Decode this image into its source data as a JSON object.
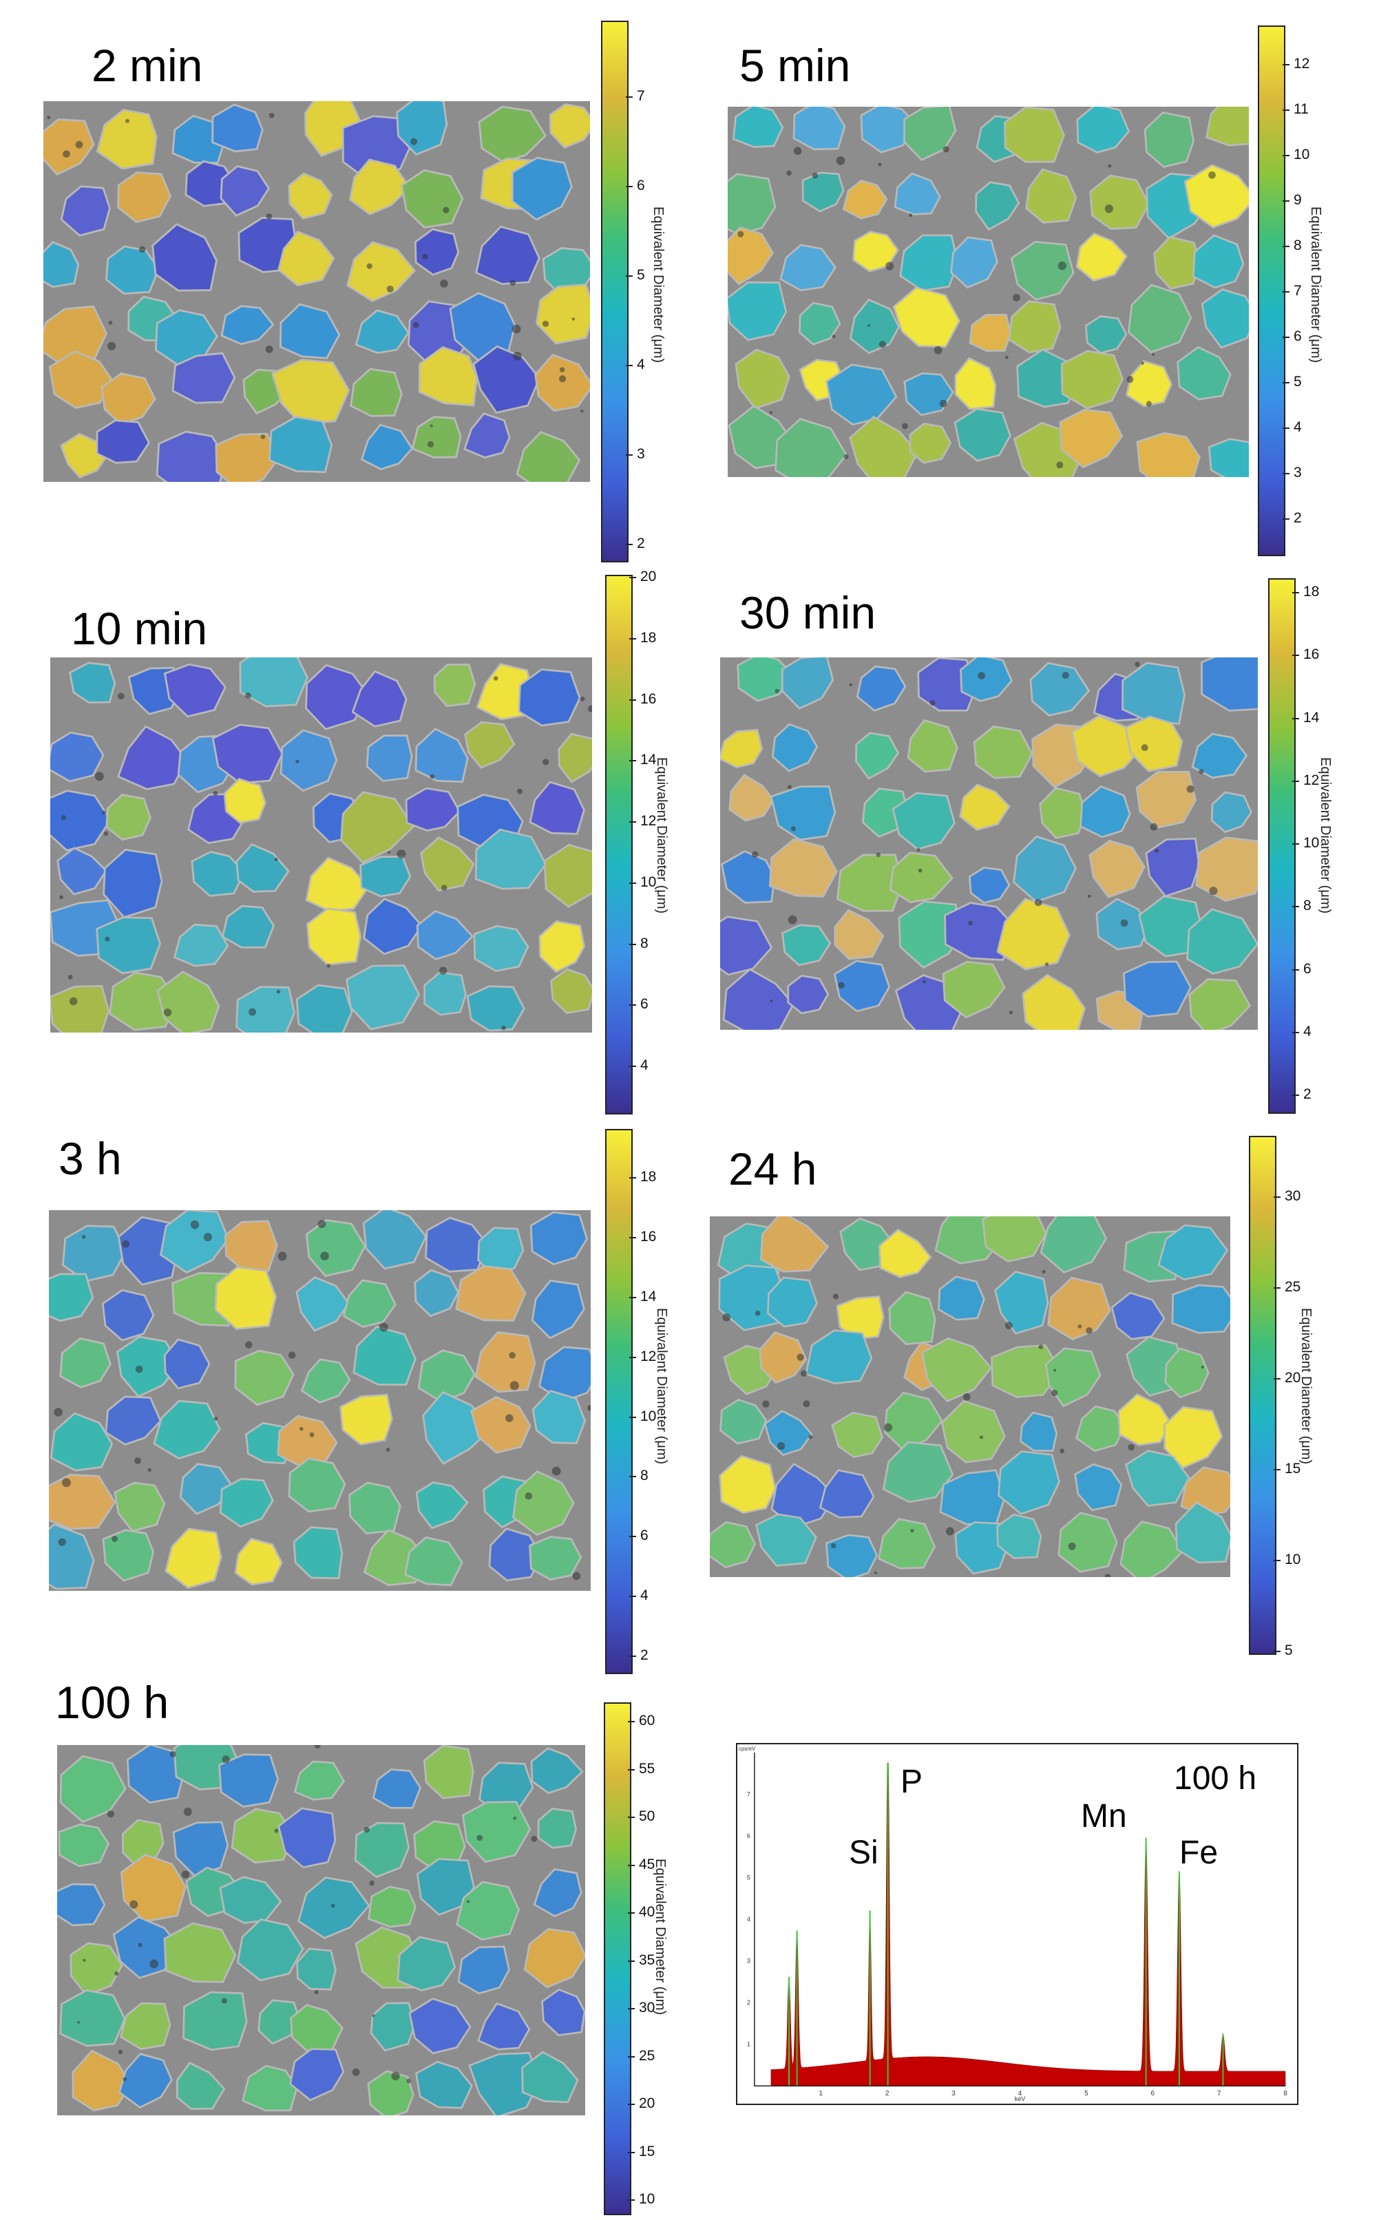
{
  "panels": [
    {
      "label": "2 min",
      "cb_title": "Equivalent Diameter (μm)",
      "ticks": [
        "7",
        "6",
        "5",
        "4",
        "3",
        "2"
      ]
    },
    {
      "label": "5 min",
      "cb_title": "Equivalent Diameter (μm)",
      "ticks": [
        "12",
        "11",
        "10",
        "9",
        "8",
        "7",
        "6",
        "5",
        "4",
        "3",
        "2"
      ]
    },
    {
      "label": "10 min",
      "cb_title": "Equivalent Diameter (μm)",
      "ticks": [
        "20",
        "18",
        "16",
        "14",
        "12",
        "10",
        "8",
        "6",
        "4"
      ]
    },
    {
      "label": "30 min",
      "cb_title": "Equivalent Diameter (μm)",
      "ticks": [
        "18",
        "16",
        "14",
        "12",
        "10",
        "8",
        "6",
        "4",
        "2"
      ]
    },
    {
      "label": "3 h",
      "cb_title": "Equivalent Diameter (μm)",
      "ticks": [
        "18",
        "16",
        "14",
        "12",
        "10",
        "8",
        "6",
        "4",
        "2"
      ]
    },
    {
      "label": "24 h",
      "cb_title": "Equivalent Diameter (μm)",
      "ticks": [
        "30",
        "25",
        "20",
        "15",
        "10",
        "5"
      ]
    },
    {
      "label": "100 h",
      "cb_title": "Equivalent Diameter (μm)",
      "ticks": [
        "60",
        "55",
        "50",
        "45",
        "40",
        "35",
        "30",
        "25",
        "20",
        "15",
        "10"
      ]
    }
  ],
  "spectrum": {
    "label": "100 h",
    "elements": [
      "Si",
      "P",
      "Mn",
      "Fe"
    ],
    "xlabel": "keV",
    "ylabel": "cps/eV",
    "x_ticks": [
      "1",
      "2",
      "3",
      "4",
      "5",
      "6",
      "7",
      "8"
    ],
    "y_ticks": [
      "1",
      "2",
      "3",
      "4",
      "5",
      "6",
      "7"
    ]
  },
  "colors": {
    "spectrum_fill": "#c40000",
    "peak_marker": "#37c837"
  }
}
